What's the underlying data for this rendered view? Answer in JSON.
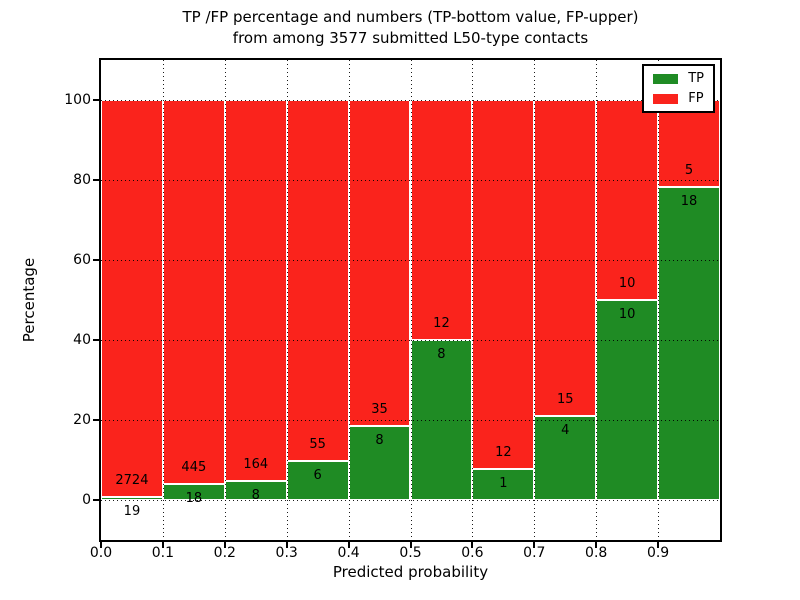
{
  "chart_data": {
    "type": "bar",
    "stacked": true,
    "title_line1": "TP /FP percentage and numbers (TP-bottom value, FP-upper)",
    "title_line2": "from among 3577 submitted L50-type contacts",
    "xlabel": "Predicted probability",
    "ylabel": "Percentage",
    "total_submitted_contacts": 3577,
    "bin_width": 0.1,
    "bins": [
      {
        "range": "0.0-0.1",
        "tp": 19,
        "fp": 2724,
        "tp_pct": 0.69
      },
      {
        "range": "0.1-0.2",
        "tp": 18,
        "fp": 445,
        "tp_pct": 3.89
      },
      {
        "range": "0.2-0.3",
        "tp": 8,
        "fp": 164,
        "tp_pct": 4.65
      },
      {
        "range": "0.3-0.4",
        "tp": 6,
        "fp": 55,
        "tp_pct": 9.84
      },
      {
        "range": "0.4-0.5",
        "tp": 8,
        "fp": 35,
        "tp_pct": 18.6
      },
      {
        "range": "0.5-0.6",
        "tp": 8,
        "fp": 12,
        "tp_pct": 40.0
      },
      {
        "range": "0.6-0.7",
        "tp": 1,
        "fp": 12,
        "tp_pct": 7.69
      },
      {
        "range": "0.7-0.8",
        "tp": 4,
        "fp": 15,
        "tp_pct": 21.05
      },
      {
        "range": "0.8-0.9",
        "tp": 10,
        "fp": 10,
        "tp_pct": 50.0
      },
      {
        "range": "0.9-1.0",
        "tp": 18,
        "fp": 5,
        "tp_pct": 78.26
      }
    ],
    "series": [
      {
        "name": "TP",
        "color": "#1f8b24",
        "stack_position": "bottom"
      },
      {
        "name": "FP",
        "color": "#fa231c",
        "stack_position": "top"
      }
    ],
    "legend_position": "upper-right",
    "xticks": [
      "0.0",
      "0.1",
      "0.2",
      "0.3",
      "0.4",
      "0.5",
      "0.6",
      "0.7",
      "0.8",
      "0.9"
    ],
    "yticks": [
      0,
      20,
      40,
      60,
      80,
      100
    ],
    "xlim": [
      0.0,
      1.0
    ],
    "ylim": [
      -10,
      110
    ],
    "grid": "dotted, horizontal and vertical, drawn above bars"
  },
  "colors": {
    "tp_green": "#1f8b24",
    "fp_red": "#fa231c",
    "background": "#ffffff",
    "grid_and_text": "#000000"
  }
}
